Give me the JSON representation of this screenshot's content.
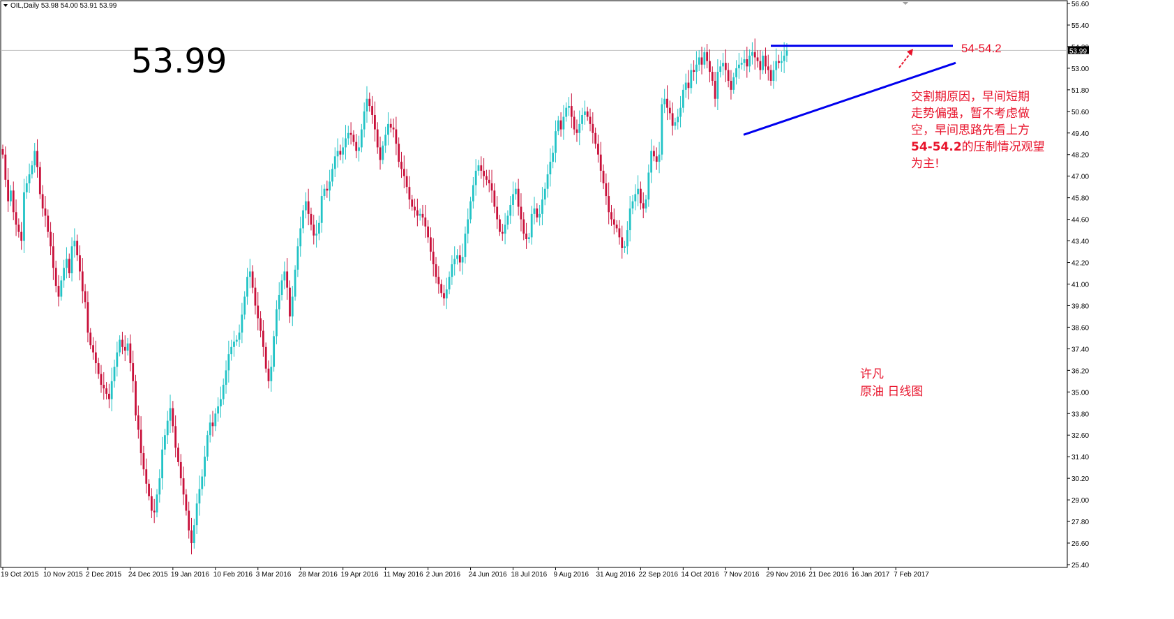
{
  "header": {
    "symbol_line": "OIL,Daily  53.98 54.00 53.91 53.99"
  },
  "big_price": "53.99",
  "current_price_tag": "53.99",
  "colors": {
    "bull": "#22c3c6",
    "bear": "#c8103a",
    "trendline": "#0000ee",
    "annotation": "#e8132b",
    "grid": "#c0c0c0"
  },
  "annotations": {
    "resistance_label": "54-54.2",
    "note_lines": [
      "交割期原因，早间短期",
      "走势偏强，暂不考虑做",
      "空，早间思路先看上方"
    ],
    "note_line4_bold": "54-54.2",
    "note_line4_rest": "的压制情况观望",
    "note_line5": "为主!",
    "author": "许凡",
    "subtitle": "原油  日线图"
  },
  "chart_data": {
    "type": "candlestick",
    "instrument": "OIL,Daily",
    "last": {
      "open": 53.98,
      "high": 54.0,
      "low": 53.91,
      "close": 53.99
    },
    "ylim": [
      25.4,
      56.6
    ],
    "y_ticks": [
      "56.60",
      "55.40",
      "54.20",
      "53.00",
      "51.80",
      "50.60",
      "49.40",
      "48.20",
      "47.00",
      "45.80",
      "44.60",
      "43.40",
      "42.20",
      "41.00",
      "39.80",
      "38.60",
      "37.40",
      "36.20",
      "35.00",
      "33.80",
      "32.60",
      "31.40",
      "30.20",
      "29.00",
      "27.80",
      "26.60",
      "25.40"
    ],
    "x_ticks": [
      "19 Oct 2015",
      "10 Nov 2015",
      "2 Dec 2015",
      "24 Dec 2015",
      "19 Jan 2016",
      "10 Feb 2016",
      "3 Mar 2016",
      "28 Mar 2016",
      "19 Apr 2016",
      "11 May 2016",
      "2 Jun 2016",
      "24 Jun 2016",
      "18 Jul 2016",
      "9 Aug 2016",
      "31 Aug 2016",
      "22 Sep 2016",
      "14 Oct 2016",
      "7 Nov 2016",
      "29 Nov 2016",
      "21 Dec 2016",
      "16 Jan 2017",
      "7 Feb 2017"
    ],
    "bars_per_tick": 16,
    "closes": [
      48.2,
      46.8,
      45.6,
      46.2,
      45.0,
      44.3,
      43.9,
      43.4,
      46.1,
      46.6,
      47.1,
      47.6,
      48.4,
      47.5,
      46.0,
      45.2,
      44.8,
      43.9,
      43.1,
      41.9,
      40.9,
      40.3,
      41.2,
      41.9,
      42.4,
      41.6,
      43.1,
      43.4,
      42.6,
      41.7,
      40.6,
      40.0,
      38.3,
      37.6,
      37.2,
      36.6,
      36.0,
      35.4,
      35.2,
      34.9,
      34.6,
      35.6,
      36.4,
      37.2,
      37.9,
      37.5,
      37.3,
      37.7,
      36.6,
      35.6,
      33.7,
      32.9,
      31.6,
      30.7,
      29.9,
      29.2,
      28.4,
      28.3,
      29.3,
      30.2,
      31.8,
      32.6,
      33.4,
      34.1,
      33.1,
      31.9,
      31.1,
      30.2,
      29.3,
      28.4,
      27.3,
      26.6,
      27.6,
      28.8,
      29.6,
      30.3,
      31.4,
      32.6,
      33.3,
      33.1,
      33.8,
      34.2,
      34.6,
      35.4,
      36.2,
      37.1,
      37.5,
      37.8,
      37.9,
      38.3,
      39.3,
      40.3,
      41.4,
      41.7,
      40.8,
      39.8,
      39.1,
      38.4,
      37.5,
      36.3,
      35.6,
      36.4,
      38.1,
      39.6,
      40.4,
      41.2,
      41.7,
      40.8,
      39.2,
      40.3,
      41.8,
      43.1,
      44.1,
      45.1,
      45.6,
      44.9,
      44.3,
      43.7,
      43.8,
      44.4,
      45.9,
      46.3,
      46.2,
      46.7,
      47.4,
      48.1,
      48.4,
      48.2,
      48.6,
      49.1,
      49.4,
      49.3,
      48.9,
      48.4,
      48.6,
      49.6,
      50.6,
      51.3,
      50.9,
      50.4,
      49.6,
      48.6,
      47.9,
      48.7,
      49.3,
      49.9,
      49.7,
      49.6,
      48.8,
      47.8,
      47.4,
      47.0,
      46.4,
      45.7,
      45.3,
      45.1,
      44.8,
      44.9,
      44.7,
      44.2,
      43.6,
      42.8,
      42.1,
      41.4,
      41.0,
      40.5,
      40.2,
      40.7,
      41.4,
      42.1,
      42.4,
      42.6,
      42.2,
      42.5,
      43.8,
      44.6,
      45.6,
      46.5,
      47.3,
      47.6,
      47.3,
      47.0,
      46.8,
      46.6,
      46.2,
      45.3,
      44.6,
      43.9,
      43.8,
      44.3,
      44.8,
      45.4,
      46.0,
      46.3,
      45.3,
      44.6,
      43.8,
      43.5,
      43.6,
      44.9,
      45.2,
      44.7,
      44.9,
      45.7,
      46.3,
      47.1,
      47.8,
      48.3,
      49.5,
      50.1,
      49.6,
      50.3,
      50.8,
      50.9,
      50.3,
      49.6,
      49.4,
      49.9,
      50.4,
      50.6,
      50.3,
      49.9,
      49.4,
      48.8,
      48.2,
      47.3,
      46.6,
      45.9,
      45.0,
      44.6,
      44.3,
      44.1,
      43.6,
      43.0,
      43.1,
      44.0,
      45.2,
      45.6,
      46.0,
      46.3,
      45.5,
      45.2,
      45.7,
      47.2,
      48.4,
      48.1,
      47.8,
      48.2,
      51.0,
      51.3,
      50.8,
      50.5,
      49.8,
      50.0,
      50.3,
      50.8,
      51.8,
      52.2,
      51.9,
      52.9,
      52.8,
      53.2,
      53.6,
      53.2,
      53.9,
      53.4,
      52.8,
      52.3,
      51.3,
      52.8,
      53.1,
      53.3,
      52.9,
      52.3,
      51.8,
      52.5,
      53.0,
      53.2,
      53.3,
      53.5,
      53.1,
      53.7,
      53.9,
      53.6,
      53.4,
      52.9,
      53.7,
      53.1,
      52.9,
      52.3,
      52.9,
      53.4,
      53.3,
      53.4,
      53.7,
      53.99
    ]
  }
}
